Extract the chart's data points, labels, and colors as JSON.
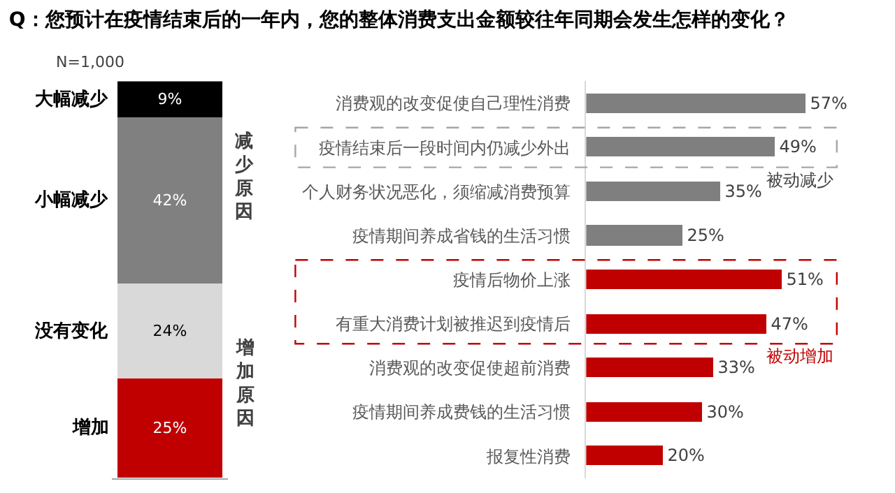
{
  "chart_data": [
    {
      "type": "bar",
      "title": "Q：您预计在疫情结束后的一年内，您的整体消费支出金额较往年同期会发生怎样的变化？",
      "subtitle": "N=1,000",
      "stacked": true,
      "categories": [
        null
      ],
      "series": [
        {
          "name": "增加",
          "color": "#c00000",
          "values": [
            25
          ],
          "value_labels": [
            "25%"
          ]
        },
        {
          "name": "没有变化",
          "color": "#d9d9d9",
          "values": [
            24
          ],
          "value_labels": [
            "24%"
          ]
        },
        {
          "name": "小幅减少",
          "color": "#808080",
          "values": [
            42
          ],
          "value_labels": [
            "42%"
          ]
        },
        {
          "name": "大幅减少",
          "color": "#000000",
          "values": [
            9
          ],
          "value_labels": [
            "9%"
          ]
        }
      ],
      "legend": false
    },
    {
      "type": "bar",
      "orientation": "horizontal",
      "categories": [
        "消费观的改变促使自己理性消费",
        "疫情结束后一段时间内仍减少外出",
        "个人财务状况恶化，须缩减消费预算",
        "疫情期间养成省钱的生活习惯",
        "疫情后物价上涨",
        "有重大消费计划被推迟到疫情后",
        "消费观的改变促使超前消费",
        "疫情期间养成费钱的生活习惯",
        "报复性消费"
      ],
      "values": [
        57,
        49,
        35,
        25,
        51,
        47,
        33,
        30,
        20
      ],
      "colors": [
        "#7f7f7f",
        "#7f7f7f",
        "#7f7f7f",
        "#7f7f7f",
        "#c00000",
        "#c00000",
        "#c00000",
        "#c00000",
        "#c00000"
      ],
      "value_labels": [
        "57%",
        "49%",
        "35%",
        "25%",
        "51%",
        "47%",
        "33%",
        "30%",
        "20%"
      ],
      "annotations": [
        "减少原因",
        "增加原因",
        "被动减少",
        "被动增加"
      ],
      "legend": false
    }
  ]
}
